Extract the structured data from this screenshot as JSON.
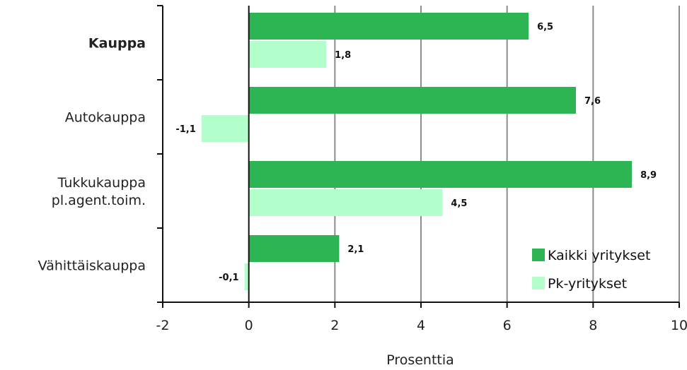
{
  "chart_data": {
    "type": "bar",
    "orientation": "horizontal",
    "categories": [
      "Kauppa",
      "Autokauppa",
      "Tukkukauppa pl.agent.toim.",
      "Vähittäiskauppa"
    ],
    "category_lines": [
      [
        "Kauppa"
      ],
      [
        "Autokauppa"
      ],
      [
        "Tukkukauppa",
        "pl.agent.toim."
      ],
      [
        "Vähittäiskauppa"
      ]
    ],
    "bold_categories": [
      "Kauppa"
    ],
    "series": [
      {
        "name": "Kaikki yritykset",
        "values": [
          6.5,
          7.6,
          8.9,
          2.1
        ],
        "labels": [
          "6,5",
          "7,6",
          "8,9",
          "2,1"
        ],
        "color": "#2db553"
      },
      {
        "name": "Pk-yritykset",
        "values": [
          1.8,
          -1.1,
          4.5,
          -0.1
        ],
        "labels": [
          "1,8",
          "-1,1",
          "4,5",
          "-0,1"
        ],
        "color": "#b3ffcc"
      }
    ],
    "xlim": [
      -2,
      10
    ],
    "xticks": [
      -2,
      0,
      2,
      4,
      6,
      8,
      10
    ],
    "xtick_labels": [
      "-2",
      "0",
      "2",
      "4",
      "6",
      "8",
      "10"
    ],
    "xlabel": "Prosenttia",
    "grid": true,
    "legend_position": "bottom-right"
  }
}
